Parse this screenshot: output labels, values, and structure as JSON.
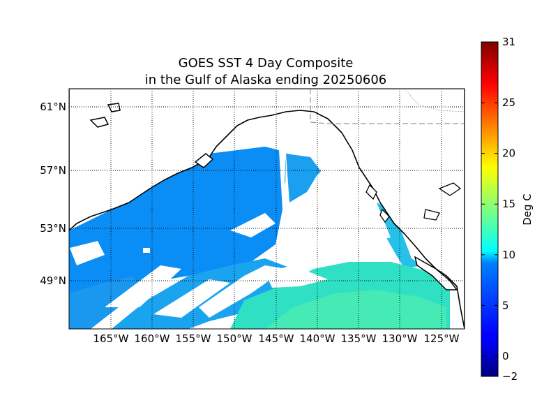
{
  "title_line1": "GOES SST 4 Day Composite",
  "title_line2": "in the Gulf of Alaska ending 20250606",
  "map": {
    "lat_ticks": [
      "61°N",
      "57°N",
      "53°N",
      "49°N"
    ],
    "lon_ticks": [
      "165°W",
      "160°W",
      "155°W",
      "150°W",
      "145°W",
      "140°W",
      "135°W",
      "130°W",
      "125°W"
    ],
    "land_color": "#ffffff",
    "coastline_color": "#000000",
    "border_color": "#999999",
    "cloud_color": "#ffffff"
  },
  "colorbar": {
    "label": "Deg C",
    "min": -2,
    "max": 31,
    "ticks": [
      {
        "value": 31,
        "label": "31"
      },
      {
        "value": 25,
        "label": "25"
      },
      {
        "value": 20,
        "label": "20"
      },
      {
        "value": 15,
        "label": "15"
      },
      {
        "value": 10,
        "label": "10"
      },
      {
        "value": 5,
        "label": "5"
      },
      {
        "value": 0,
        "label": "0"
      },
      {
        "value": -2,
        "label": "−2"
      }
    ],
    "colormap": "jet"
  }
}
